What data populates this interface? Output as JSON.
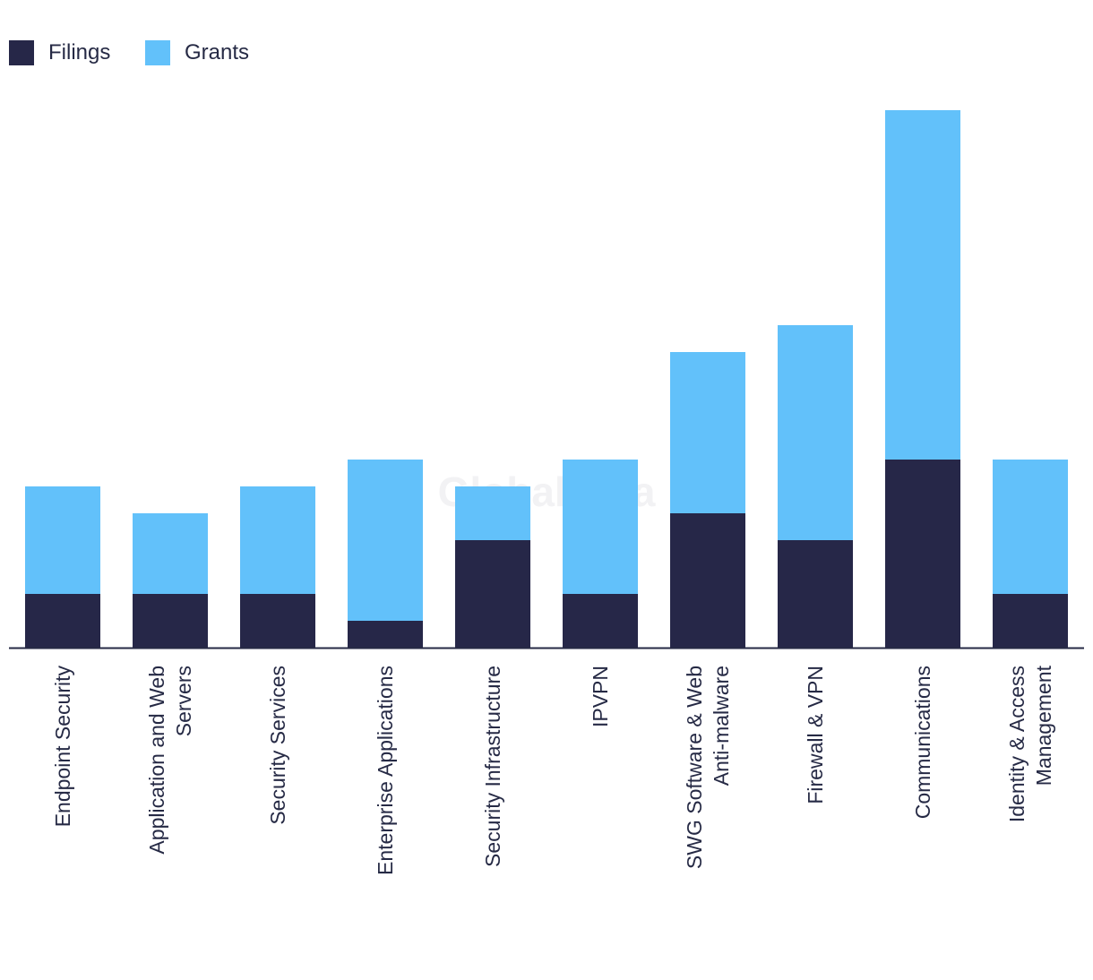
{
  "watermark": "GlobalData",
  "colors": {
    "filings": "#262748",
    "grants": "#62c1fa",
    "axis": "#262a45",
    "text": "#262a45",
    "background": "#ffffff"
  },
  "legend": {
    "placement": "top-left",
    "items": [
      {
        "label": "Filings",
        "color": "#262748"
      },
      {
        "label": "Grants",
        "color": "#62c1fa"
      }
    ]
  },
  "chart_data": {
    "type": "bar",
    "stacked": true,
    "title": "",
    "xlabel": "",
    "ylabel": "",
    "grid": false,
    "ylim": [
      0,
      20
    ],
    "categories": [
      [
        "Endpoint Security"
      ],
      [
        "Application and Web",
        "Servers"
      ],
      [
        "Security Services"
      ],
      [
        "Enterprise Applications"
      ],
      [
        "Security Infrastructure"
      ],
      [
        "IPVPN"
      ],
      [
        "SWG Software & Web",
        "Anti-malware"
      ],
      [
        "Firewall & VPN"
      ],
      [
        "Communications"
      ],
      [
        "Identity & Access",
        "Management"
      ]
    ],
    "series": [
      {
        "name": "Filings",
        "values": [
          2,
          2,
          2,
          1,
          4,
          2,
          5,
          4,
          7,
          2
        ]
      },
      {
        "name": "Grants",
        "values": [
          4,
          3,
          4,
          6,
          2,
          5,
          6,
          8,
          13,
          5
        ]
      }
    ]
  }
}
